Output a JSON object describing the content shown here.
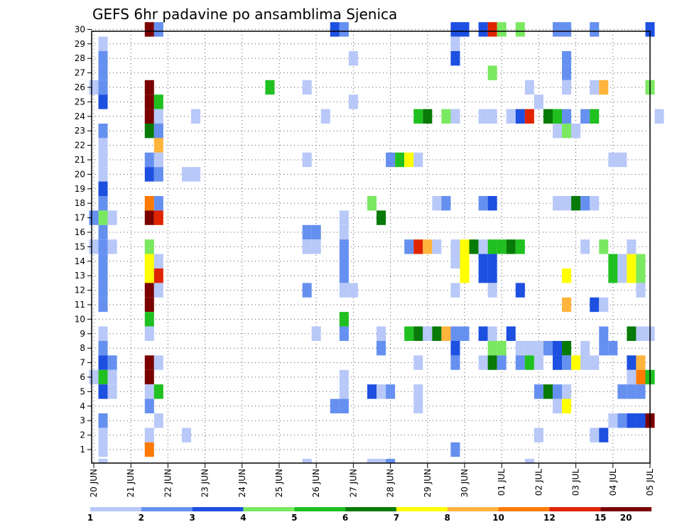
{
  "chart_data": {
    "type": "heatmap",
    "title": "GEFS 6hr padavine po ansamblima Sjenica",
    "xlabel": "",
    "ylabel": "",
    "x_tick_labels": [
      "20 JUN",
      "21 JUN",
      "22 JUN",
      "23 JUN",
      "24 JUN",
      "25 JUN",
      "26 JUN",
      "27 JUN",
      "28 JUN",
      "29 JUN",
      "30 JUN",
      "01 JUL",
      "02 JUL",
      "03 JUL",
      "04 JUL",
      "05 JUL"
    ],
    "y_tick_labels": [
      "1",
      "2",
      "3",
      "4",
      "5",
      "6",
      "7",
      "8",
      "9",
      "10",
      "11",
      "12",
      "13",
      "14",
      "15",
      "16",
      "17",
      "18",
      "19",
      "20",
      "21",
      "22",
      "23",
      "24",
      "25",
      "26",
      "27",
      "28",
      "29",
      "30"
    ],
    "x_range_steps": [
      0,
      61
    ],
    "steps_per_day": 4,
    "members": 30,
    "grid": true,
    "legend_position": "bottom",
    "legend": {
      "colors": [
        "#b8c8f8",
        "#6690f0",
        "#1d4fe0",
        "#7ae860",
        "#1fc01f",
        "#077a07",
        "#ffff00",
        "#ffb43c",
        "#ff7a00",
        "#e02400",
        "#7a0000"
      ],
      "labels": [
        "1",
        "2",
        "3",
        "4",
        "5",
        "6",
        "7",
        "8",
        "10",
        "12",
        "15",
        "20"
      ]
    },
    "cells_note": "each cell: [member, step, class_index] where class_index refers to legend.colors",
    "cells": [
      [
        30,
        6,
        10
      ],
      [
        30,
        7,
        1
      ],
      [
        30,
        26,
        2
      ],
      [
        30,
        27,
        1
      ],
      [
        30,
        39,
        2
      ],
      [
        30,
        40,
        2
      ],
      [
        30,
        42,
        2
      ],
      [
        30,
        43,
        9
      ],
      [
        30,
        44,
        3
      ],
      [
        30,
        46,
        3
      ],
      [
        30,
        50,
        1
      ],
      [
        30,
        51,
        1
      ],
      [
        30,
        54,
        1
      ],
      [
        30,
        60,
        2
      ],
      [
        29,
        1,
        0
      ],
      [
        29,
        39,
        0
      ],
      [
        28,
        1,
        1
      ],
      [
        28,
        28,
        0
      ],
      [
        28,
        39,
        2
      ],
      [
        28,
        51,
        1
      ],
      [
        27,
        1,
        1
      ],
      [
        27,
        43,
        3
      ],
      [
        27,
        51,
        1
      ],
      [
        26,
        0,
        0
      ],
      [
        26,
        1,
        1
      ],
      [
        26,
        6,
        10
      ],
      [
        26,
        19,
        4
      ],
      [
        26,
        23,
        0
      ],
      [
        26,
        47,
        0
      ],
      [
        26,
        51,
        0
      ],
      [
        26,
        54,
        0
      ],
      [
        26,
        55,
        7
      ],
      [
        26,
        60,
        3
      ],
      [
        25,
        1,
        2
      ],
      [
        25,
        6,
        10
      ],
      [
        25,
        7,
        4
      ],
      [
        25,
        28,
        0
      ],
      [
        25,
        48,
        0
      ],
      [
        24,
        6,
        10
      ],
      [
        24,
        7,
        0
      ],
      [
        24,
        11,
        0
      ],
      [
        24,
        25,
        0
      ],
      [
        24,
        35,
        4
      ],
      [
        24,
        36,
        5
      ],
      [
        24,
        38,
        3
      ],
      [
        24,
        39,
        0
      ],
      [
        24,
        42,
        0
      ],
      [
        24,
        43,
        0
      ],
      [
        24,
        45,
        0
      ],
      [
        24,
        46,
        2
      ],
      [
        24,
        47,
        9
      ],
      [
        24,
        49,
        5
      ],
      [
        24,
        50,
        4
      ],
      [
        24,
        51,
        1
      ],
      [
        24,
        53,
        1
      ],
      [
        24,
        54,
        4
      ],
      [
        24,
        61,
        0
      ],
      [
        23,
        1,
        1
      ],
      [
        23,
        6,
        5
      ],
      [
        23,
        7,
        1
      ],
      [
        23,
        50,
        0
      ],
      [
        23,
        51,
        3
      ],
      [
        23,
        52,
        0
      ],
      [
        22,
        1,
        0
      ],
      [
        22,
        7,
        7
      ],
      [
        21,
        1,
        0
      ],
      [
        21,
        6,
        1
      ],
      [
        21,
        7,
        0
      ],
      [
        21,
        23,
        0
      ],
      [
        21,
        32,
        1
      ],
      [
        21,
        33,
        4
      ],
      [
        21,
        34,
        6
      ],
      [
        21,
        35,
        0
      ],
      [
        21,
        56,
        0
      ],
      [
        21,
        57,
        0
      ],
      [
        20,
        1,
        0
      ],
      [
        20,
        6,
        2
      ],
      [
        20,
        7,
        1
      ],
      [
        20,
        10,
        0
      ],
      [
        20,
        11,
        0
      ],
      [
        19,
        1,
        2
      ],
      [
        18,
        1,
        1
      ],
      [
        18,
        6,
        8
      ],
      [
        18,
        7,
        1
      ],
      [
        18,
        30,
        3
      ],
      [
        18,
        37,
        0
      ],
      [
        18,
        38,
        1
      ],
      [
        18,
        42,
        1
      ],
      [
        18,
        43,
        2
      ],
      [
        18,
        50,
        0
      ],
      [
        18,
        51,
        0
      ],
      [
        18,
        52,
        5
      ],
      [
        18,
        53,
        1
      ],
      [
        18,
        54,
        0
      ],
      [
        17,
        0,
        1
      ],
      [
        17,
        1,
        3
      ],
      [
        17,
        2,
        0
      ],
      [
        17,
        6,
        10
      ],
      [
        17,
        7,
        9
      ],
      [
        17,
        27,
        0
      ],
      [
        17,
        31,
        5
      ],
      [
        16,
        1,
        1
      ],
      [
        16,
        23,
        1
      ],
      [
        16,
        24,
        1
      ],
      [
        16,
        27,
        0
      ],
      [
        15,
        0,
        0
      ],
      [
        15,
        1,
        1
      ],
      [
        15,
        2,
        0
      ],
      [
        15,
        6,
        3
      ],
      [
        15,
        23,
        0
      ],
      [
        15,
        24,
        0
      ],
      [
        15,
        27,
        1
      ],
      [
        15,
        34,
        1
      ],
      [
        15,
        35,
        9
      ],
      [
        15,
        36,
        7
      ],
      [
        15,
        37,
        0
      ],
      [
        15,
        39,
        0
      ],
      [
        15,
        40,
        6
      ],
      [
        15,
        41,
        5
      ],
      [
        15,
        42,
        0
      ],
      [
        15,
        43,
        4
      ],
      [
        15,
        44,
        4
      ],
      [
        15,
        45,
        5
      ],
      [
        15,
        46,
        4
      ],
      [
        15,
        53,
        0
      ],
      [
        15,
        55,
        3
      ],
      [
        15,
        58,
        0
      ],
      [
        14,
        1,
        1
      ],
      [
        14,
        6,
        6
      ],
      [
        14,
        7,
        0
      ],
      [
        14,
        27,
        1
      ],
      [
        14,
        39,
        0
      ],
      [
        14,
        40,
        6
      ],
      [
        14,
        42,
        2
      ],
      [
        14,
        43,
        2
      ],
      [
        14,
        56,
        4
      ],
      [
        14,
        57,
        0
      ],
      [
        14,
        58,
        6
      ],
      [
        14,
        59,
        3
      ],
      [
        13,
        1,
        1
      ],
      [
        13,
        6,
        6
      ],
      [
        13,
        7,
        9
      ],
      [
        13,
        27,
        1
      ],
      [
        13,
        40,
        6
      ],
      [
        13,
        42,
        2
      ],
      [
        13,
        43,
        2
      ],
      [
        13,
        51,
        6
      ],
      [
        13,
        56,
        4
      ],
      [
        13,
        57,
        0
      ],
      [
        13,
        58,
        6
      ],
      [
        13,
        59,
        3
      ],
      [
        12,
        1,
        1
      ],
      [
        12,
        6,
        10
      ],
      [
        12,
        7,
        0
      ],
      [
        12,
        23,
        1
      ],
      [
        12,
        27,
        0
      ],
      [
        12,
        28,
        0
      ],
      [
        12,
        39,
        0
      ],
      [
        12,
        43,
        0
      ],
      [
        12,
        46,
        2
      ],
      [
        12,
        59,
        0
      ],
      [
        11,
        1,
        1
      ],
      [
        11,
        6,
        10
      ],
      [
        11,
        51,
        7
      ],
      [
        11,
        54,
        2
      ],
      [
        11,
        55,
        0
      ],
      [
        10,
        6,
        4
      ],
      [
        10,
        27,
        4
      ],
      [
        9,
        1,
        0
      ],
      [
        9,
        6,
        0
      ],
      [
        9,
        24,
        0
      ],
      [
        9,
        27,
        1
      ],
      [
        9,
        31,
        0
      ],
      [
        9,
        34,
        4
      ],
      [
        9,
        35,
        5
      ],
      [
        9,
        36,
        0
      ],
      [
        9,
        37,
        5
      ],
      [
        9,
        38,
        7
      ],
      [
        9,
        39,
        1
      ],
      [
        9,
        40,
        1
      ],
      [
        9,
        42,
        2
      ],
      [
        9,
        43,
        0
      ],
      [
        9,
        45,
        2
      ],
      [
        9,
        55,
        1
      ],
      [
        9,
        58,
        5
      ],
      [
        9,
        59,
        0
      ],
      [
        9,
        60,
        0
      ],
      [
        8,
        1,
        1
      ],
      [
        8,
        31,
        1
      ],
      [
        8,
        39,
        2
      ],
      [
        8,
        43,
        3
      ],
      [
        8,
        44,
        3
      ],
      [
        8,
        46,
        0
      ],
      [
        8,
        47,
        0
      ],
      [
        8,
        48,
        0
      ],
      [
        8,
        49,
        1
      ],
      [
        8,
        50,
        2
      ],
      [
        8,
        51,
        5
      ],
      [
        8,
        53,
        0
      ],
      [
        8,
        55,
        1
      ],
      [
        8,
        56,
        1
      ],
      [
        7,
        1,
        2
      ],
      [
        7,
        2,
        1
      ],
      [
        7,
        6,
        10
      ],
      [
        7,
        7,
        0
      ],
      [
        7,
        35,
        0
      ],
      [
        7,
        39,
        1
      ],
      [
        7,
        42,
        0
      ],
      [
        7,
        43,
        5
      ],
      [
        7,
        44,
        1
      ],
      [
        7,
        46,
        1
      ],
      [
        7,
        47,
        4
      ],
      [
        7,
        48,
        0
      ],
      [
        7,
        50,
        2
      ],
      [
        7,
        51,
        1
      ],
      [
        7,
        52,
        6
      ],
      [
        7,
        53,
        0
      ],
      [
        7,
        54,
        0
      ],
      [
        7,
        58,
        2
      ],
      [
        7,
        59,
        7
      ],
      [
        6,
        0,
        0
      ],
      [
        6,
        1,
        4
      ],
      [
        6,
        2,
        0
      ],
      [
        6,
        6,
        10
      ],
      [
        6,
        27,
        0
      ],
      [
        6,
        58,
        0
      ],
      [
        6,
        59,
        8
      ],
      [
        6,
        60,
        4
      ],
      [
        5,
        1,
        2
      ],
      [
        5,
        2,
        0
      ],
      [
        5,
        6,
        0
      ],
      [
        5,
        7,
        4
      ],
      [
        5,
        27,
        0
      ],
      [
        5,
        30,
        2
      ],
      [
        5,
        31,
        0
      ],
      [
        5,
        32,
        1
      ],
      [
        5,
        35,
        0
      ],
      [
        5,
        48,
        1
      ],
      [
        5,
        49,
        5
      ],
      [
        5,
        50,
        1
      ],
      [
        5,
        51,
        0
      ],
      [
        5,
        57,
        1
      ],
      [
        5,
        58,
        1
      ],
      [
        5,
        59,
        1
      ],
      [
        4,
        6,
        1
      ],
      [
        4,
        26,
        1
      ],
      [
        4,
        27,
        1
      ],
      [
        4,
        35,
        0
      ],
      [
        4,
        50,
        0
      ],
      [
        4,
        51,
        6
      ],
      [
        3,
        1,
        1
      ],
      [
        3,
        7,
        0
      ],
      [
        3,
        56,
        0
      ],
      [
        3,
        57,
        1
      ],
      [
        3,
        58,
        2
      ],
      [
        3,
        59,
        2
      ],
      [
        3,
        60,
        10
      ],
      [
        2,
        1,
        0
      ],
      [
        2,
        6,
        0
      ],
      [
        2,
        10,
        0
      ],
      [
        2,
        48,
        0
      ],
      [
        2,
        54,
        0
      ],
      [
        2,
        55,
        2
      ],
      [
        1,
        1,
        0
      ],
      [
        1,
        6,
        8
      ],
      [
        1,
        39,
        1
      ],
      [
        0,
        1,
        0
      ],
      [
        0,
        23,
        0
      ],
      [
        0,
        30,
        0
      ],
      [
        0,
        31,
        0
      ],
      [
        0,
        32,
        1
      ],
      [
        0,
        47,
        0
      ]
    ]
  }
}
